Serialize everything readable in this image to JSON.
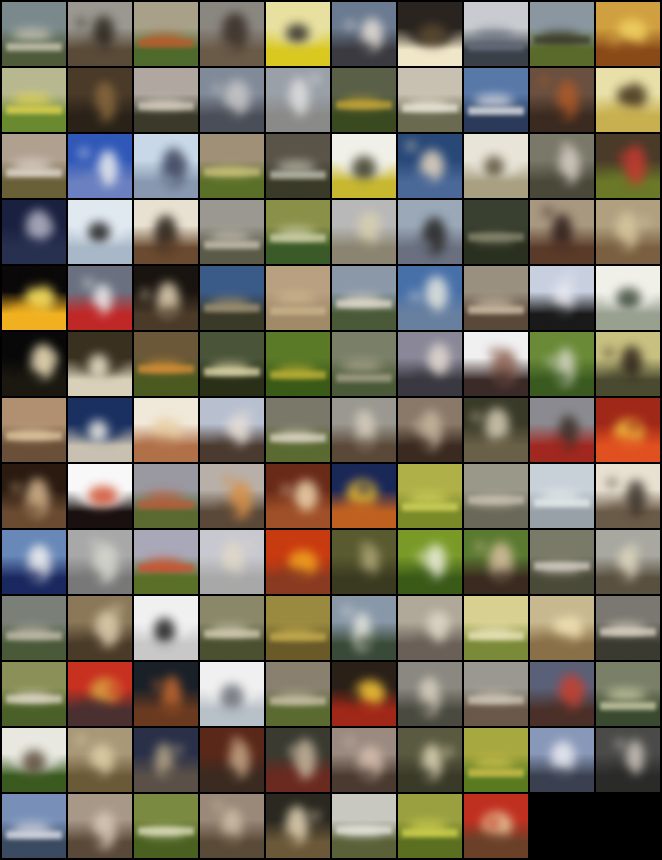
{
  "grid": {
    "columns": 10,
    "total_cells": 130,
    "filled_cells": 128,
    "background_color": "#000000"
  },
  "rows": [
    {
      "cells": [
        {
          "sky": "#7a8a8c",
          "ground": "#4e5a3a",
          "accent": "#d8d2c0",
          "kind": "landscape"
        },
        {
          "sky": "#9a9890",
          "ground": "#5a4a38",
          "accent": "#2a241c",
          "kind": "figure"
        },
        {
          "sky": "#a8a088",
          "ground": "#4e6a2c",
          "accent": "#c05a2a",
          "kind": "landscape"
        },
        {
          "sky": "#8a8680",
          "ground": "#6a5a48",
          "accent": "#3a3028",
          "kind": "figure"
        },
        {
          "sky": "#e8e0a0",
          "ground": "#d8c820",
          "accent": "#2a2a28",
          "kind": "bright"
        },
        {
          "sky": "#6a7a90",
          "ground": "#3a3a40",
          "accent": "#e8e0d8",
          "kind": "figure"
        },
        {
          "sky": "#2a2420",
          "ground": "#f0e6c8",
          "accent": "#5a4a30",
          "kind": "bright"
        },
        {
          "sky": "#c8ccd0",
          "ground": "#3a4048",
          "accent": "#6a7080",
          "kind": "landscape"
        },
        {
          "sky": "#8a96a0",
          "ground": "#5a6a2a",
          "accent": "#3a3a2a",
          "kind": "landscape"
        },
        {
          "sky": "#d0a040",
          "ground": "#8a4a18",
          "accent": "#f0d060",
          "kind": "warm"
        }
      ]
    },
    {
      "cells": [
        {
          "sky": "#b8b890",
          "ground": "#6a8a30",
          "accent": "#e8d850",
          "kind": "landscape"
        },
        {
          "sky": "#4a3a28",
          "ground": "#2a2218",
          "accent": "#8a6a40",
          "kind": "figure"
        },
        {
          "sky": "#b0a8a0",
          "ground": "#3a3a2a",
          "accent": "#d8d0c0",
          "kind": "landscape"
        },
        {
          "sky": "#808a98",
          "ground": "#4a4e58",
          "accent": "#c8c8c8",
          "kind": "figure"
        },
        {
          "sky": "#9aa0a8",
          "ground": "#8a8a88",
          "accent": "#e0e0e0",
          "kind": "figure"
        },
        {
          "sky": "#5a6048",
          "ground": "#3a4a20",
          "accent": "#c8a838",
          "kind": "landscape"
        },
        {
          "sky": "#c8c0b0",
          "ground": "#6a6a50",
          "accent": "#f0ece0",
          "kind": "landscape"
        },
        {
          "sky": "#5878a8",
          "ground": "#2a3a58",
          "accent": "#f0f0f0",
          "kind": "landscape"
        },
        {
          "sky": "#6a5040",
          "ground": "#3a2a20",
          "accent": "#b05a28",
          "kind": "figure"
        },
        {
          "sky": "#e8e0a8",
          "ground": "#c8b050",
          "accent": "#4a3a20",
          "kind": "warm"
        }
      ]
    },
    {
      "cells": [
        {
          "sky": "#b0a090",
          "ground": "#6a6038",
          "accent": "#e8e0d8",
          "kind": "landscape"
        },
        {
          "sky": "#3058b8",
          "ground": "#6a80c0",
          "accent": "#f0f0f0",
          "kind": "figure"
        },
        {
          "sky": "#c8d8e8",
          "ground": "#8898b0",
          "accent": "#384058",
          "kind": "figure"
        },
        {
          "sky": "#a09078",
          "ground": "#5a7028",
          "accent": "#c8c078",
          "kind": "landscape"
        },
        {
          "sky": "#5a5448",
          "ground": "#3a3a28",
          "accent": "#c8c8b8",
          "kind": "landscape"
        },
        {
          "sky": "#f0f0e8",
          "ground": "#c8b830",
          "accent": "#3a3a28",
          "kind": "bright"
        },
        {
          "sky": "#284878",
          "ground": "#4a6898",
          "accent": "#e8d8c0",
          "kind": "figure"
        },
        {
          "sky": "#e8e4d8",
          "ground": "#a8a080",
          "accent": "#5a5038",
          "kind": "bright"
        },
        {
          "sky": "#7a7868",
          "ground": "#4a4838",
          "accent": "#d8d0c8",
          "kind": "figure"
        },
        {
          "sky": "#4a3a28",
          "ground": "#6a7828",
          "accent": "#c83a30",
          "kind": "figure"
        }
      ]
    },
    {
      "cells": [
        {
          "sky": "#1a2040",
          "ground": "#283050",
          "accent": "#b8b8c8",
          "kind": "figure"
        },
        {
          "sky": "#e0e8f0",
          "ground": "#a8b8c8",
          "accent": "#1a1a1a",
          "kind": "bright"
        },
        {
          "sky": "#e8e0d0",
          "ground": "#6a4a30",
          "accent": "#2a2018",
          "kind": "figure"
        },
        {
          "sky": "#9a9890",
          "ground": "#5a5a48",
          "accent": "#d0c8b8",
          "kind": "landscape"
        },
        {
          "sky": "#8a9048",
          "ground": "#3a5a28",
          "accent": "#d8d8b0",
          "kind": "landscape"
        },
        {
          "sky": "#b8b8b8",
          "ground": "#8a8470",
          "accent": "#d8d0b0",
          "kind": "figure"
        },
        {
          "sky": "#9aa8b8",
          "ground": "#6a7080",
          "accent": "#2a2a28",
          "kind": "figure"
        },
        {
          "sky": "#3a4030",
          "ground": "#2a3020",
          "accent": "#8a8a70",
          "kind": "landscape"
        },
        {
          "sky": "#a89880",
          "ground": "#5a3a28",
          "accent": "#2a1a18",
          "kind": "figure"
        },
        {
          "sky": "#b0a080",
          "ground": "#7a6040",
          "accent": "#d8c8a0",
          "kind": "figure"
        }
      ]
    },
    {
      "cells": [
        {
          "sky": "#0a0808",
          "ground": "#f0b020",
          "accent": "#f8e060",
          "kind": "warm"
        },
        {
          "sky": "#6a7080",
          "ground": "#c02828",
          "accent": "#f0f0f0",
          "kind": "figure"
        },
        {
          "sky": "#1a1410",
          "ground": "#4a3a28",
          "accent": "#e8d8b8",
          "kind": "figure"
        },
        {
          "sky": "#3a5a88",
          "ground": "#3a3a28",
          "accent": "#a89878",
          "kind": "landscape"
        },
        {
          "sky": "#b8a080",
          "ground": "#a08a68",
          "accent": "#d0b890",
          "kind": "landscape"
        },
        {
          "sky": "#8a98a8",
          "ground": "#4a5a38",
          "accent": "#e8e0d0",
          "kind": "landscape"
        },
        {
          "sky": "#4870a8",
          "ground": "#6880a0",
          "accent": "#e8e8e0",
          "kind": "figure"
        },
        {
          "sky": "#9a9080",
          "ground": "#5a4838",
          "accent": "#d8c8b0",
          "kind": "landscape"
        },
        {
          "sky": "#c8d0e0",
          "ground": "#1a1a1a",
          "accent": "#e8e8f0",
          "kind": "figure"
        },
        {
          "sky": "#f0f0e8",
          "ground": "#98a090",
          "accent": "#3a4838",
          "kind": "bright"
        }
      ]
    },
    {
      "cells": [
        {
          "sky": "#080808",
          "ground": "#1a1810",
          "accent": "#f8e8c0",
          "kind": "figure"
        },
        {
          "sky": "#3a3020",
          "ground": "#d8d0b8",
          "accent": "#f0e8d0",
          "kind": "bright"
        },
        {
          "sky": "#6a5838",
          "ground": "#4a5a20",
          "accent": "#d89038",
          "kind": "landscape"
        },
        {
          "sky": "#4a5438",
          "ground": "#2a3018",
          "accent": "#e8e0b0",
          "kind": "landscape"
        },
        {
          "sky": "#5a7a28",
          "ground": "#3a5a18",
          "accent": "#c8b838",
          "kind": "landscape"
        },
        {
          "sky": "#7a8068",
          "ground": "#4a5a38",
          "accent": "#b0a890",
          "kind": "landscape"
        },
        {
          "sky": "#8a8898",
          "ground": "#3a3840",
          "accent": "#e0d8d0",
          "kind": "figure"
        },
        {
          "sky": "#f0f0f0",
          "ground": "#3a2a28",
          "accent": "#8a6050",
          "kind": "figure"
        },
        {
          "sky": "#6a8a38",
          "ground": "#3a5a20",
          "accent": "#d8d8c8",
          "kind": "figure"
        },
        {
          "sky": "#c8c080",
          "ground": "#4a4a30",
          "accent": "#2a2018",
          "kind": "figure"
        }
      ]
    },
    {
      "cells": [
        {
          "sky": "#b09070",
          "ground": "#6a5038",
          "accent": "#e0c8a0",
          "kind": "landscape"
        },
        {
          "sky": "#1a3060",
          "ground": "#c8c0b0",
          "accent": "#f0f0e8",
          "kind": "bright"
        },
        {
          "sky": "#f0e8d8",
          "ground": "#b07048",
          "accent": "#e8d0a8",
          "kind": "warm"
        },
        {
          "sky": "#b8c0d0",
          "ground": "#4a3a30",
          "accent": "#e8e0d8",
          "kind": "figure"
        },
        {
          "sky": "#7a7868",
          "ground": "#5a6a30",
          "accent": "#e0d8c8",
          "kind": "landscape"
        },
        {
          "sky": "#9a9890",
          "ground": "#5a4838",
          "accent": "#d8d0c0",
          "kind": "figure"
        },
        {
          "sky": "#8a7868",
          "ground": "#3a2a20",
          "accent": "#c8b8a0",
          "kind": "figure"
        },
        {
          "sky": "#3a3a28",
          "ground": "#6a6048",
          "accent": "#d8d0b8",
          "kind": "figure"
        },
        {
          "sky": "#8a8a90",
          "ground": "#a02820",
          "accent": "#3a3028",
          "kind": "figure"
        },
        {
          "sky": "#a02818",
          "ground": "#e05020",
          "accent": "#f0c040",
          "kind": "warm"
        }
      ]
    },
    {
      "cells": [
        {
          "sky": "#2a1a10",
          "ground": "#6a4a30",
          "accent": "#d8b890",
          "kind": "figure"
        },
        {
          "sky": "#f8f8f8",
          "ground": "#1a1010",
          "accent": "#d05030",
          "kind": "bright"
        },
        {
          "sky": "#9a98a0",
          "ground": "#5a6a30",
          "accent": "#c05a38",
          "kind": "landscape"
        },
        {
          "sky": "#b8b0a8",
          "ground": "#5a4838",
          "accent": "#d89048",
          "kind": "figure"
        },
        {
          "sky": "#6a2a18",
          "ground": "#a05028",
          "accent": "#f0d8b0",
          "kind": "figure"
        },
        {
          "sky": "#1a2858",
          "ground": "#c06020",
          "accent": "#f0c030",
          "kind": "warm"
        },
        {
          "sky": "#b0b048",
          "ground": "#7a8a28",
          "accent": "#d8d860",
          "kind": "landscape"
        },
        {
          "sky": "#9a9888",
          "ground": "#6a6858",
          "accent": "#c8c0b0",
          "kind": "landscape"
        },
        {
          "sky": "#c8d0d8",
          "ground": "#98a0a8",
          "accent": "#e8f0f0",
          "kind": "landscape"
        },
        {
          "sky": "#e8e0d0",
          "ground": "#6a5a48",
          "accent": "#3a3028",
          "kind": "figure"
        }
      ]
    },
    {
      "cells": [
        {
          "sky": "#6888b8",
          "ground": "#1a2860",
          "accent": "#f0f0f0",
          "kind": "figure"
        },
        {
          "sky": "#a8a8a8",
          "ground": "#787878",
          "accent": "#d8d8d0",
          "kind": "figure"
        },
        {
          "sky": "#a8a8b8",
          "ground": "#5a7028",
          "accent": "#d05030",
          "kind": "landscape"
        },
        {
          "sky": "#c8c8d0",
          "ground": "#a8a8a8",
          "accent": "#e0d8c8",
          "kind": "figure"
        },
        {
          "sky": "#c83a10",
          "ground": "#8a3a20",
          "accent": "#f0a020",
          "kind": "warm"
        },
        {
          "sky": "#5a5a30",
          "ground": "#3a3a20",
          "accent": "#b0a878",
          "kind": "figure"
        },
        {
          "sky": "#7a9a28",
          "ground": "#3a5a18",
          "accent": "#f0f0e0",
          "kind": "figure"
        },
        {
          "sky": "#5a7a30",
          "ground": "#3a2a20",
          "accent": "#d8c0a0",
          "kind": "figure"
        },
        {
          "sky": "#7a7a68",
          "ground": "#4a4a38",
          "accent": "#d8d0c8",
          "kind": "landscape"
        },
        {
          "sky": "#a8a8a0",
          "ground": "#5a5040",
          "accent": "#e0d8c0",
          "kind": "figure"
        }
      ]
    },
    {
      "cells": [
        {
          "sky": "#7a8078",
          "ground": "#4a5a38",
          "accent": "#c8c0b0",
          "kind": "landscape"
        },
        {
          "sky": "#8a7858",
          "ground": "#4a3a28",
          "accent": "#e0d0b0",
          "kind": "figure"
        },
        {
          "sky": "#f0f0f0",
          "ground": "#c8c8c8",
          "accent": "#1a1a1a",
          "kind": "bright"
        },
        {
          "sky": "#8a8868",
          "ground": "#4a5030",
          "accent": "#d8d0b8",
          "kind": "landscape"
        },
        {
          "sky": "#9a8a40",
          "ground": "#6a5a28",
          "accent": "#c8b050",
          "kind": "landscape"
        },
        {
          "sky": "#8898a8",
          "ground": "#3a4a38",
          "accent": "#e8e8e0",
          "kind": "figure"
        },
        {
          "sky": "#b0a898",
          "ground": "#6a6058",
          "accent": "#e0d8c8",
          "kind": "figure"
        },
        {
          "sky": "#d8d090",
          "ground": "#7a8a38",
          "accent": "#f0e8c0",
          "kind": "landscape"
        },
        {
          "sky": "#c8b890",
          "ground": "#8a7048",
          "accent": "#f0e0b0",
          "kind": "warm"
        },
        {
          "sky": "#7a7870",
          "ground": "#3a3a30",
          "accent": "#e0d8c8",
          "kind": "landscape"
        }
      ]
    },
    {
      "cells": [
        {
          "sky": "#8a9058",
          "ground": "#4a6028",
          "accent": "#e0d8c8",
          "kind": "landscape"
        },
        {
          "sky": "#c83020",
          "ground": "#4a3030",
          "accent": "#d8a040",
          "kind": "warm"
        },
        {
          "sky": "#1a2028",
          "ground": "#6a3a20",
          "accent": "#c86a30",
          "kind": "figure"
        },
        {
          "sky": "#f0f0f0",
          "ground": "#b8c0c8",
          "accent": "#6a7078",
          "kind": "bright"
        },
        {
          "sky": "#8a8070",
          "ground": "#5a6a30",
          "accent": "#c8c0a8",
          "kind": "landscape"
        },
        {
          "sky": "#2a2018",
          "ground": "#a02818",
          "accent": "#f0c038",
          "kind": "warm"
        },
        {
          "sky": "#8a8880",
          "ground": "#4a4a40",
          "accent": "#d8d0c0",
          "kind": "figure"
        },
        {
          "sky": "#9a9890",
          "ground": "#6a5848",
          "accent": "#d0c8b8",
          "kind": "landscape"
        },
        {
          "sky": "#5a6078",
          "ground": "#4a3028",
          "accent": "#c84030",
          "kind": "figure"
        },
        {
          "sky": "#7a8068",
          "ground": "#3a4a30",
          "accent": "#d8d8b0",
          "kind": "landscape"
        }
      ]
    },
    {
      "cells": [
        {
          "sky": "#e8e8e0",
          "ground": "#3a5a20",
          "accent": "#5a4a38",
          "kind": "bright"
        },
        {
          "sky": "#a89878",
          "ground": "#6a5a38",
          "accent": "#e0d0a8",
          "kind": "figure"
        },
        {
          "sky": "#2a3048",
          "ground": "#5a5048",
          "accent": "#b8a888",
          "kind": "figure"
        },
        {
          "sky": "#5a2818",
          "ground": "#3a2a20",
          "accent": "#c8a888",
          "kind": "figure"
        },
        {
          "sky": "#3a3a30",
          "ground": "#6a2a20",
          "accent": "#c8b8a0",
          "kind": "figure"
        },
        {
          "sky": "#9a8a80",
          "ground": "#4a3a30",
          "accent": "#d8c0b0",
          "kind": "figure"
        },
        {
          "sky": "#5a5a40",
          "ground": "#3a3a28",
          "accent": "#e0d8b8",
          "kind": "figure"
        },
        {
          "sky": "#a8a840",
          "ground": "#5a7a20",
          "accent": "#d8c850",
          "kind": "landscape"
        },
        {
          "sky": "#8898b8",
          "ground": "#3a4050",
          "accent": "#e8e8f0",
          "kind": "figure"
        },
        {
          "sky": "#4a4a48",
          "ground": "#2a2a28",
          "accent": "#d0c8c0",
          "kind": "figure"
        }
      ]
    },
    {
      "cells": [
        {
          "sky": "#7890b8",
          "ground": "#3a4a60",
          "accent": "#e8e8f0",
          "kind": "landscape"
        },
        {
          "sky": "#a89888",
          "ground": "#5a4838",
          "accent": "#d8c8b8",
          "kind": "figure"
        },
        {
          "sky": "#7a8a40",
          "ground": "#4a6020",
          "accent": "#e0e0c0",
          "kind": "landscape"
        },
        {
          "sky": "#9a8878",
          "ground": "#5a4a38",
          "accent": "#d0c0a8",
          "kind": "figure"
        },
        {
          "sky": "#2a2820",
          "ground": "#6a5838",
          "accent": "#e8d8b8",
          "kind": "figure"
        },
        {
          "sky": "#c8c8c0",
          "ground": "#5a6038",
          "accent": "#e8e8e0",
          "kind": "landscape"
        },
        {
          "sky": "#9aa040",
          "ground": "#5a7020",
          "accent": "#d8d850",
          "kind": "landscape"
        },
        {
          "sky": "#c03020",
          "ground": "#6a4028",
          "accent": "#e8d0a0",
          "kind": "warm"
        }
      ]
    }
  ]
}
